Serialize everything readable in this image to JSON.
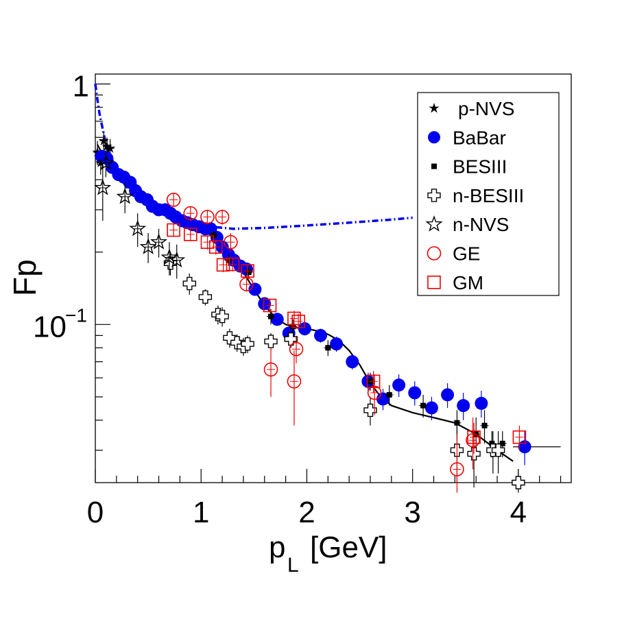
{
  "chart_data": {
    "type": "scatter",
    "title": "",
    "xlabel_main": "p",
    "xlabel_sub": "L",
    "xlabel_unit": "[GeV]",
    "ylabel": "Fp",
    "xlim": [
      0,
      4.5
    ],
    "ylim": [
      0.022,
      1.1
    ],
    "yscale": "log",
    "x_ticks": [
      {
        "value": 0,
        "label": "0"
      },
      {
        "value": 1,
        "label": "1"
      },
      {
        "value": 2,
        "label": "2"
      },
      {
        "value": 3,
        "label": "3"
      },
      {
        "value": 4,
        "label": "4"
      }
    ],
    "y_ticks": [
      {
        "value": 1,
        "label": "1"
      },
      {
        "value": 0.1,
        "label": "10",
        "exponent": "−1"
      }
    ],
    "legend_position": "top-right",
    "legend": [
      {
        "label": "p-NVS",
        "marker": "star-filled",
        "color": "#000000"
      },
      {
        "label": "BaBar",
        "marker": "circle-filled",
        "color": "#0000ee"
      },
      {
        "label": "BESIII",
        "marker": "square-filled",
        "color": "#000000"
      },
      {
        "label": "n-BESIII",
        "marker": "cross-open",
        "color": "#000000"
      },
      {
        "label": "n-NVS",
        "marker": "star-open",
        "color": "#000000"
      },
      {
        "label": "GE",
        "marker": "circle-open",
        "color": "#ee0000"
      },
      {
        "label": "GM",
        "marker": "square-open",
        "color": "#ee0000"
      }
    ],
    "series": [
      {
        "name": "p-NVS",
        "marker": "star-filled",
        "color": "#000000",
        "points": [
          [
            0.02,
            0.52,
            0.06
          ],
          [
            0.05,
            0.47,
            0.05
          ],
          [
            0.08,
            0.58,
            0.05
          ],
          [
            0.11,
            0.55,
            0.05
          ],
          [
            0.14,
            0.54,
            0.05
          ]
        ]
      },
      {
        "name": "BaBar",
        "marker": "circle-filled",
        "color": "#0000ee",
        "points": [
          [
            0.06,
            0.5,
            0.03
          ],
          [
            0.11,
            0.49,
            0.03
          ],
          [
            0.16,
            0.45,
            0.02
          ],
          [
            0.22,
            0.42,
            0.02
          ],
          [
            0.27,
            0.41,
            0.02
          ],
          [
            0.33,
            0.39,
            0.02
          ],
          [
            0.38,
            0.36,
            0.02
          ],
          [
            0.43,
            0.34,
            0.015
          ],
          [
            0.49,
            0.33,
            0.015
          ],
          [
            0.54,
            0.31,
            0.015
          ],
          [
            0.6,
            0.3,
            0.015
          ],
          [
            0.66,
            0.3,
            0.015
          ],
          [
            0.71,
            0.29,
            0.015
          ],
          [
            0.76,
            0.28,
            0.015
          ],
          [
            0.82,
            0.27,
            0.015
          ],
          [
            0.87,
            0.265,
            0.015
          ],
          [
            0.92,
            0.26,
            0.015
          ],
          [
            0.98,
            0.255,
            0.015
          ],
          [
            1.04,
            0.25,
            0.015
          ],
          [
            1.09,
            0.25,
            0.015
          ],
          [
            1.15,
            0.23,
            0.012
          ],
          [
            1.2,
            0.21,
            0.012
          ],
          [
            1.26,
            0.195,
            0.01
          ],
          [
            1.31,
            0.185,
            0.01
          ],
          [
            1.37,
            0.175,
            0.01
          ],
          [
            1.43,
            0.17,
            0.01
          ],
          [
            1.51,
            0.14,
            0.008
          ],
          [
            1.6,
            0.122,
            0.007
          ],
          [
            1.72,
            0.105,
            0.006
          ],
          [
            1.83,
            0.092,
            0.006
          ],
          [
            1.98,
            0.096,
            0.006
          ],
          [
            2.13,
            0.09,
            0.006
          ],
          [
            2.28,
            0.083,
            0.006
          ],
          [
            2.43,
            0.07,
            0.005
          ],
          [
            2.58,
            0.058,
            0.005
          ],
          [
            2.72,
            0.049,
            0.005
          ],
          [
            2.87,
            0.056,
            0.006
          ],
          [
            3.02,
            0.052,
            0.006
          ],
          [
            3.18,
            0.045,
            0.005
          ],
          [
            3.33,
            0.051,
            0.006
          ],
          [
            3.48,
            0.046,
            0.006
          ],
          [
            3.65,
            0.047,
            0.006
          ],
          [
            4.06,
            0.031,
            0.005
          ]
        ]
      },
      {
        "name": "BESIII",
        "marker": "square-filled",
        "color": "#000000",
        "points": [
          [
            1.12,
            0.235,
            0.01
          ],
          [
            1.26,
            0.185,
            0.01
          ],
          [
            1.45,
            0.165,
            0.01
          ],
          [
            1.66,
            0.108,
            0.008
          ],
          [
            1.87,
            0.098,
            0.007
          ],
          [
            2.2,
            0.08,
            0.006
          ],
          [
            2.6,
            0.058,
            0.005
          ],
          [
            2.78,
            0.051,
            0.005
          ],
          [
            3.1,
            0.046,
            0.005
          ],
          [
            3.42,
            0.039,
            0.005
          ],
          [
            3.6,
            0.035,
            0.006
          ],
          [
            3.68,
            0.038,
            0.006
          ],
          [
            3.75,
            0.032,
            0.004
          ],
          [
            3.85,
            0.032,
            0.004
          ]
        ]
      },
      {
        "name": "n-BESIII",
        "marker": "cross-open",
        "color": "#000000",
        "points": [
          [
            0.71,
            0.18,
            0.02
          ],
          [
            0.89,
            0.148,
            0.015
          ],
          [
            1.04,
            0.13,
            0.01
          ],
          [
            1.16,
            0.11,
            0.01
          ],
          [
            1.2,
            0.108,
            0.01
          ],
          [
            1.27,
            0.088,
            0.008
          ],
          [
            1.34,
            0.084,
            0.007
          ],
          [
            1.4,
            0.081,
            0.007
          ],
          [
            1.44,
            0.083,
            0.007
          ],
          [
            1.66,
            0.085,
            0.007
          ],
          [
            1.85,
            0.087,
            0.007
          ],
          [
            2.6,
            0.044,
            0.006
          ],
          [
            3.42,
            0.03,
            0.008
          ],
          [
            3.58,
            0.029,
            0.008
          ],
          [
            3.76,
            0.03,
            0.006
          ],
          [
            3.81,
            0.03,
            0.006
          ],
          [
            4.0,
            0.022,
            0.003
          ]
        ]
      },
      {
        "name": "n-NVS",
        "marker": "star-open",
        "color": "#000000",
        "points": [
          [
            0.07,
            0.37,
            0.1
          ],
          [
            0.1,
            0.47,
            0.06
          ],
          [
            0.28,
            0.34,
            0.05
          ],
          [
            0.4,
            0.25,
            0.04
          ],
          [
            0.5,
            0.21,
            0.03
          ],
          [
            0.6,
            0.22,
            0.03
          ],
          [
            0.7,
            0.19,
            0.03
          ],
          [
            0.77,
            0.185,
            0.03
          ]
        ]
      },
      {
        "name": "GE",
        "marker": "circle-open",
        "color": "#ee0000",
        "points": [
          [
            0.74,
            0.33,
            0.02
          ],
          [
            0.9,
            0.29,
            0.02
          ],
          [
            1.06,
            0.28,
            0.02
          ],
          [
            1.2,
            0.28,
            0.02
          ],
          [
            1.28,
            0.22,
            0.02
          ],
          [
            1.43,
            0.147,
            0.01
          ],
          [
            1.66,
            0.065,
            0.015
          ],
          [
            1.88,
            0.058,
            0.02
          ],
          [
            1.9,
            0.079,
            0.01
          ],
          [
            2.64,
            0.052,
            0.01
          ],
          [
            3.42,
            0.025,
            0.01
          ],
          [
            3.57,
            0.033,
            0.008
          ]
        ]
      },
      {
        "name": "GM",
        "marker": "square-open",
        "color": "#ee0000",
        "points": [
          [
            0.74,
            0.247,
            0.015
          ],
          [
            0.9,
            0.237,
            0.015
          ],
          [
            1.06,
            0.22,
            0.015
          ],
          [
            1.14,
            0.21,
            0.015
          ],
          [
            1.21,
            0.177,
            0.012
          ],
          [
            1.3,
            0.178,
            0.012
          ],
          [
            1.44,
            0.167,
            0.01
          ],
          [
            1.65,
            0.12,
            0.008
          ],
          [
            1.88,
            0.106,
            0.008
          ],
          [
            1.92,
            0.103,
            0.008
          ],
          [
            2.63,
            0.058,
            0.006
          ],
          [
            3.58,
            0.034,
            0.005
          ],
          [
            4.01,
            0.034,
            0.004
          ]
        ]
      }
    ],
    "fit_curve": {
      "name": "fit",
      "color": "#000000",
      "style": "solid",
      "points": [
        [
          0.02,
          0.56
        ],
        [
          0.1,
          0.48
        ],
        [
          0.2,
          0.42
        ],
        [
          0.4,
          0.36
        ],
        [
          0.6,
          0.31
        ],
        [
          0.8,
          0.28
        ],
        [
          1.0,
          0.255
        ],
        [
          1.1,
          0.24
        ],
        [
          1.2,
          0.215
        ],
        [
          1.3,
          0.19
        ],
        [
          1.4,
          0.165
        ],
        [
          1.5,
          0.14
        ],
        [
          1.6,
          0.12
        ],
        [
          1.7,
          0.107
        ],
        [
          1.8,
          0.1
        ],
        [
          1.9,
          0.097
        ],
        [
          2.0,
          0.096
        ],
        [
          2.1,
          0.094
        ],
        [
          2.2,
          0.091
        ],
        [
          2.3,
          0.086
        ],
        [
          2.4,
          0.078
        ],
        [
          2.5,
          0.068
        ],
        [
          2.6,
          0.057
        ],
        [
          2.7,
          0.05
        ],
        [
          2.8,
          0.046
        ],
        [
          3.0,
          0.043
        ],
        [
          3.2,
          0.041
        ],
        [
          3.4,
          0.039
        ],
        [
          3.6,
          0.035
        ],
        [
          3.8,
          0.03
        ],
        [
          3.95,
          0.027
        ]
      ]
    },
    "fit_tail": {
      "color": "#000000",
      "x_from": 3.95,
      "x_to": 4.4,
      "y": 0.031
    },
    "dashed_curve": {
      "name": "dash-dot",
      "color": "#0000ee",
      "style": "dashdot",
      "points": [
        [
          0.0,
          1.0
        ],
        [
          0.02,
          0.86
        ],
        [
          0.04,
          0.75
        ],
        [
          0.07,
          0.65
        ],
        [
          0.1,
          0.56
        ],
        [
          0.15,
          0.48
        ],
        [
          0.2,
          0.43
        ],
        [
          0.3,
          0.37
        ],
        [
          0.5,
          0.32
        ],
        [
          0.7,
          0.29
        ],
        [
          0.9,
          0.27
        ],
        [
          1.1,
          0.255
        ],
        [
          1.3,
          0.25
        ],
        [
          1.6,
          0.252
        ],
        [
          2.0,
          0.258
        ],
        [
          2.4,
          0.265
        ],
        [
          2.8,
          0.273
        ],
        [
          3.0,
          0.278
        ]
      ]
    }
  }
}
